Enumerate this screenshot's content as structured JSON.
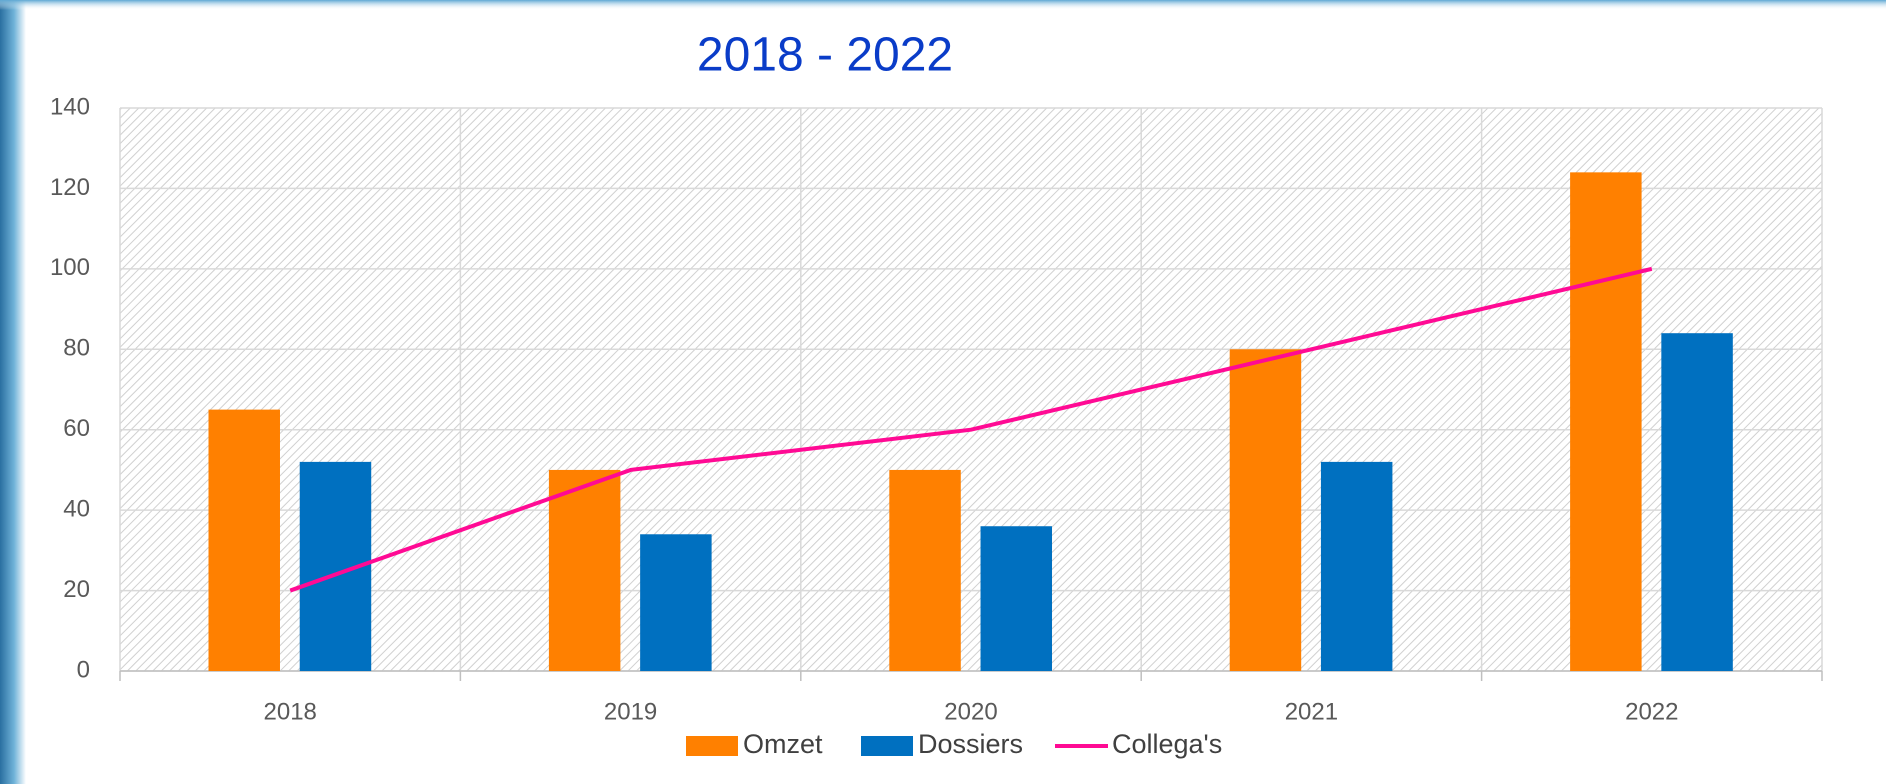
{
  "chart_data": {
    "type": "bar",
    "title": "2018 - 2022",
    "categories": [
      "2018",
      "2019",
      "2020",
      "2021",
      "2022"
    ],
    "series": [
      {
        "name": "Omzet",
        "color": "#ff8000",
        "type": "bar",
        "values": [
          65,
          50,
          50,
          80,
          124
        ]
      },
      {
        "name": "Dossiers",
        "color": "#0070c0",
        "type": "bar",
        "values": [
          52,
          34,
          36,
          52,
          84
        ]
      },
      {
        "name": "Collega's",
        "color": "#ff0a94",
        "type": "line",
        "values": [
          20,
          50,
          60,
          80,
          100
        ]
      }
    ],
    "ylim": [
      0,
      140
    ],
    "yticks": [
      0,
      20,
      40,
      60,
      80,
      100,
      120,
      140
    ],
    "grid": true,
    "legend": "bottom"
  }
}
